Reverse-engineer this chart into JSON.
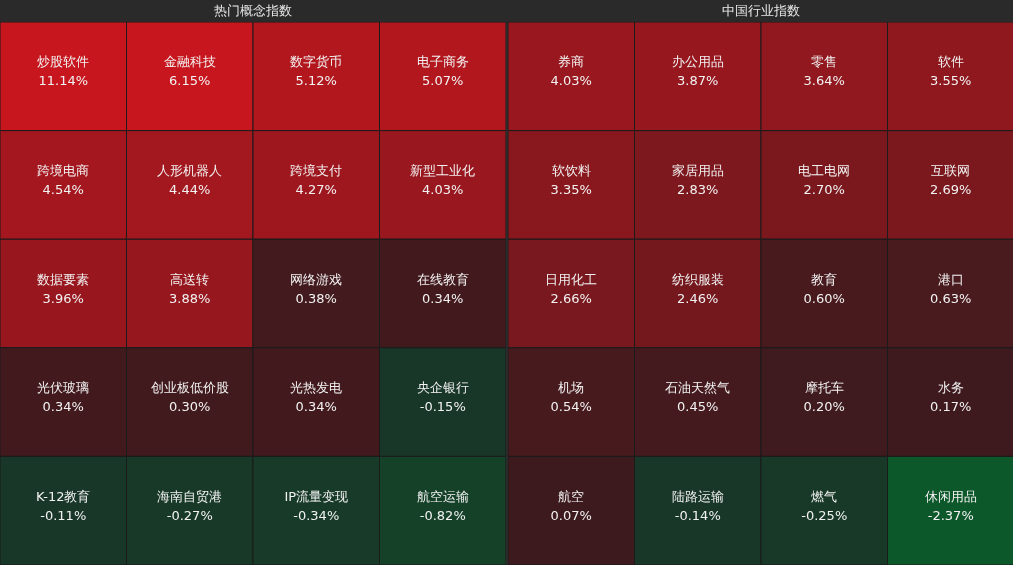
{
  "chart_data": [
    {
      "type": "other",
      "title": "热门概念指数",
      "categories": [
        "炒股软件",
        "金融科技",
        "数字货币",
        "电子商务",
        "跨境电商",
        "人形机器人",
        "跨境支付",
        "新型工业化",
        "数据要素",
        "高送转",
        "网络游戏",
        "在线教育",
        "光伏玻璃",
        "创业板低价股",
        "光热发电",
        "央企银行",
        "K-12教育",
        "海南自贸港",
        "IP流量变现",
        "航空运输"
      ],
      "values": [
        11.14,
        6.15,
        5.12,
        5.07,
        4.54,
        4.44,
        4.27,
        4.03,
        3.96,
        3.88,
        0.38,
        0.34,
        0.34,
        0.3,
        0.34,
        -0.15,
        -0.11,
        -0.27,
        -0.34,
        -0.82
      ],
      "value_labels": [
        "11.14%",
        "6.15%",
        "5.12%",
        "5.07%",
        "4.54%",
        "4.44%",
        "4.27%",
        "4.03%",
        "3.96%",
        "3.88%",
        "0.38%",
        "0.34%",
        "0.34%",
        "0.30%",
        "0.34%",
        "-0.15%",
        "-0.11%",
        "-0.27%",
        "-0.34%",
        "-0.82%"
      ]
    },
    {
      "type": "other",
      "title": "中国行业指数",
      "categories": [
        "券商",
        "办公用品",
        "零售",
        "软件",
        "软饮料",
        "家居用品",
        "电工电网",
        "互联网",
        "日用化工",
        "纺织服装",
        "教育",
        "港口",
        "机场",
        "石油天然气",
        "摩托车",
        "水务",
        "航空",
        "陆路运输",
        "燃气",
        "休闲用品"
      ],
      "values": [
        4.03,
        3.87,
        3.64,
        3.55,
        3.35,
        2.83,
        2.7,
        2.69,
        2.66,
        2.46,
        0.6,
        0.63,
        0.54,
        0.45,
        0.2,
        0.17,
        0.07,
        -0.14,
        -0.25,
        -2.37
      ],
      "value_labels": [
        "4.03%",
        "3.87%",
        "3.64%",
        "3.55%",
        "3.35%",
        "2.83%",
        "2.70%",
        "2.69%",
        "2.66%",
        "2.46%",
        "0.60%",
        "0.63%",
        "0.54%",
        "0.45%",
        "0.20%",
        "0.17%",
        "0.07%",
        "-0.14%",
        "-0.25%",
        "-2.37%"
      ]
    }
  ]
}
